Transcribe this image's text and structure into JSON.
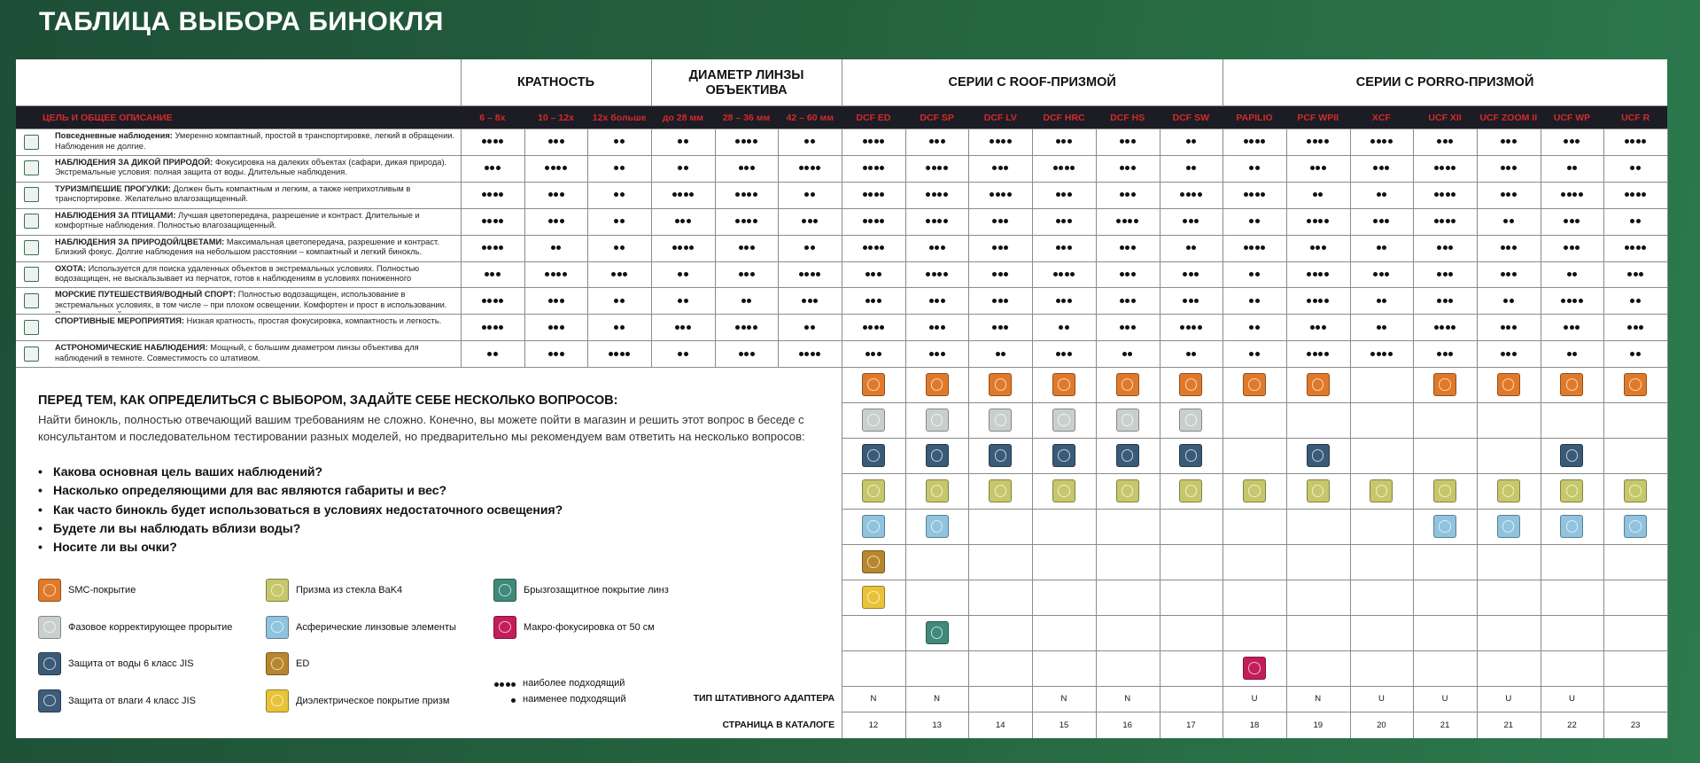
{
  "title": "ТАБЛИЦА ВЫБОРА БИНОКЛЯ",
  "table": {
    "purpose_header": "ЦЕЛЬ И ОБЩЕЕ ОПИСАНИЕ",
    "groups": [
      {
        "label": "КРАТНОСТЬ",
        "columns": [
          "6 – 8x",
          "10 – 12x",
          "12x больше"
        ]
      },
      {
        "label": "ДИАМЕТР ЛИНЗЫ ОБЪЕКТИВА",
        "columns": [
          "до 28 мм",
          "28 – 36 мм",
          "42 – 60 мм"
        ]
      },
      {
        "label": "СЕРИИ С ROOF-ПРИЗМОЙ",
        "columns": [
          "DCF ED",
          "DCF SP",
          "DCF LV",
          "DCF HRC",
          "DCF HS",
          "DCF SW"
        ]
      },
      {
        "label": "СЕРИИ С PORRO-ПРИЗМОЙ",
        "columns": [
          "PAPILIO",
          "PCF WPII",
          "XCF",
          "UCF XII",
          "UCF ZOOM II",
          "UCF WP",
          "UCF R"
        ]
      }
    ],
    "rows": [
      {
        "name": "Повседневные наблюдения:",
        "description": "Умеренно компактный, простой в транспортировке, легкий в обращении. Наблюдения не долгие.",
        "ratings": [
          4,
          3,
          2,
          2,
          4,
          2,
          4,
          3,
          4,
          3,
          3,
          2,
          4,
          4,
          4,
          3,
          3,
          3,
          4
        ]
      },
      {
        "name": "НАБЛЮДЕНИЯ ЗА ДИКОЙ ПРИРОДОЙ:",
        "description": "Фокусировка на далеких объектах (сафари, дикая природа). Экстремальные условия: полная защита от воды. Длительные наблюдения.",
        "ratings": [
          3,
          4,
          2,
          2,
          3,
          4,
          4,
          4,
          3,
          4,
          3,
          2,
          2,
          3,
          3,
          4,
          3,
          2,
          2
        ]
      },
      {
        "name": "ТУРИЗМ/ПЕШИЕ ПРОГУЛКИ:",
        "description": "Должен быть компактным и легким, а также неприхотливым в транспортировке. Желательно влагозащищенный.",
        "ratings": [
          4,
          3,
          2,
          4,
          4,
          2,
          4,
          4,
          4,
          3,
          3,
          4,
          4,
          2,
          2,
          4,
          3,
          4,
          4
        ]
      },
      {
        "name": "НАБЛЮДЕНИЯ ЗА ПТИЦАМИ:",
        "description": "Лучшая цветопередача, разрешение и контраст. Длительные и комфортные наблюдения. Полностью влагозащищенный.",
        "ratings": [
          4,
          3,
          2,
          3,
          4,
          3,
          4,
          4,
          3,
          3,
          4,
          3,
          2,
          4,
          3,
          4,
          2,
          3,
          2
        ]
      },
      {
        "name": "НАБЛЮДЕНИЯ ЗА ПРИРОДОЙ/ЦВЕТАМИ:",
        "description": "Максимальная цветопередача, разрешение и контраст. Близкий фокус. Долгие наблюдения на небольшом расстоянии – компактный и легкий бинокль.",
        "ratings": [
          4,
          2,
          2,
          4,
          3,
          2,
          4,
          3,
          3,
          3,
          3,
          2,
          4,
          3,
          2,
          3,
          3,
          3,
          4
        ]
      },
      {
        "name": "ОХОТА:",
        "description": "Используется для поиска удаленных объектов в экстремальных условиях. Полностью водозащищен, не выскальзывает из перчаток, готов к наблюдениям в условиях пониженного освещения.",
        "ratings": [
          3,
          4,
          3,
          2,
          3,
          4,
          3,
          4,
          3,
          4,
          3,
          3,
          2,
          4,
          3,
          3,
          3,
          2,
          3
        ]
      },
      {
        "name": "МОРСКИЕ ПУТЕШЕСТВИЯ/ВОДНЫЙ СПОРТ:",
        "description": "Полностью водозащищен, использование в экстремальных условиях, в том числе – при плохом освещении. Комфортен и прост в использовании. Полноразмерный.",
        "ratings": [
          4,
          3,
          2,
          2,
          2,
          3,
          3,
          3,
          3,
          3,
          3,
          3,
          2,
          4,
          2,
          3,
          2,
          4,
          2
        ]
      },
      {
        "name": "СПОРТИВНЫЕ МЕРОПРИЯТИЯ:",
        "description": "Низкая кратность, простая фокусировка, компактность и легкость.",
        "ratings": [
          4,
          3,
          2,
          3,
          4,
          2,
          4,
          3,
          3,
          2,
          3,
          4,
          2,
          3,
          2,
          4,
          3,
          3,
          3
        ]
      },
      {
        "name": "АСТРОНОМИЧЕСКИЕ НАБЛЮДЕНИЯ:",
        "description": "Мощный, с большим диаметром линзы объектива для наблюдений в темноте. Совместимость со штативом.",
        "ratings": [
          2,
          3,
          4,
          2,
          3,
          4,
          3,
          3,
          2,
          3,
          2,
          2,
          2,
          4,
          4,
          3,
          3,
          2,
          2
        ]
      }
    ]
  },
  "features": {
    "grid": [
      {
        "color": "#e07a2a",
        "marks": [
          1,
          1,
          1,
          1,
          1,
          1,
          1,
          1,
          0,
          1,
          1,
          1,
          1
        ]
      },
      {
        "color": "#c9d0cc",
        "marks": [
          1,
          1,
          1,
          1,
          1,
          1,
          0,
          0,
          0,
          0,
          0,
          0,
          0
        ]
      },
      {
        "color": "#3a5a78",
        "marks": [
          1,
          1,
          1,
          1,
          1,
          1,
          0,
          1,
          0,
          0,
          0,
          1,
          0
        ]
      },
      {
        "color": "#c6c76a",
        "marks": [
          1,
          1,
          1,
          1,
          1,
          1,
          1,
          1,
          1,
          1,
          1,
          1,
          1
        ]
      },
      {
        "color": "#8fc3de",
        "marks": [
          1,
          1,
          0,
          0,
          0,
          0,
          0,
          0,
          0,
          1,
          1,
          1,
          1
        ]
      },
      {
        "color": "#b8862e",
        "marks": [
          1,
          0,
          0,
          0,
          0,
          0,
          0,
          0,
          0,
          0,
          0,
          0,
          0
        ]
      },
      {
        "color": "#e8c33a",
        "marks": [
          1,
          0,
          0,
          0,
          0,
          0,
          0,
          0,
          0,
          0,
          0,
          0,
          0
        ]
      },
      {
        "color": "#3f8a7a",
        "marks": [
          0,
          1,
          0,
          0,
          0,
          0,
          0,
          0,
          0,
          0,
          0,
          0,
          0
        ]
      },
      {
        "color": "#c41e5a",
        "marks": [
          0,
          0,
          0,
          0,
          0,
          0,
          1,
          0,
          0,
          0,
          0,
          0,
          0
        ]
      }
    ],
    "legend": [
      {
        "label": "SMC-покрытие",
        "color": "#e07a2a"
      },
      {
        "label": "Фазовое корректирующее прорытие",
        "color": "#c9d0cc"
      },
      {
        "label": "Защита от воды 6 класс JIS",
        "color": "#3a5a78"
      },
      {
        "label": "Защита от влаги 4 класс JIS",
        "color": "#3c5c7a"
      },
      {
        "label": "Призма из стекла BaK4",
        "color": "#c6c76a"
      },
      {
        "label": "Асферические линзовые элементы",
        "color": "#8fc3de"
      },
      {
        "label": "ED",
        "color": "#b8862e"
      },
      {
        "label": "Диэлектрическое покрытие призм",
        "color": "#e8c33a"
      },
      {
        "label": "Брызгозащитное покрытие линз",
        "color": "#3f8a7a"
      },
      {
        "label": "Макро-фокусировка от 50 см",
        "color": "#c41e5a"
      }
    ]
  },
  "adapter": {
    "label": "ТИП ШТАТИВНОГО АДАПТЕРА",
    "values": [
      "N",
      "N",
      null,
      "N",
      "N",
      null,
      "U",
      "N",
      "U",
      "U",
      "U",
      "U",
      null
    ]
  },
  "pages": {
    "label": "СТРАНИЦА В КАТАЛОГЕ",
    "values": [
      12,
      13,
      14,
      15,
      16,
      17,
      18,
      19,
      20,
      21,
      21,
      22,
      23
    ]
  },
  "questions": {
    "heading": "ПЕРЕД ТЕМ, КАК ОПРЕДЕЛИТЬСЯ С ВЫБОРОМ, ЗАДАЙТЕ СЕБЕ НЕСКОЛЬКО ВОПРОСОВ:",
    "intro": "Найти бинокль, полностью отвечающий вашим требованиям не сложно. Конечно, вы можете пойти в магазин и решить этот вопрос в беседе с консультантом и последовательном тестировании разных моделей, но предварительно мы рекомендуем вам ответить на несколько вопросов:",
    "items": [
      "Какова основная цель ваших наблюдений?",
      "Насколько определяющими для вас являются габариты и вес?",
      "Как часто бинокль будет использоваться в условиях недостаточного освещения?",
      "Будете ли вы наблюдать вблизи воды?",
      "Носите ли вы очки?"
    ]
  },
  "dot_legend": [
    {
      "dots": 4,
      "label": "наиболее подходящий"
    },
    {
      "dots": 1,
      "label": "наименее подходящий"
    }
  ]
}
